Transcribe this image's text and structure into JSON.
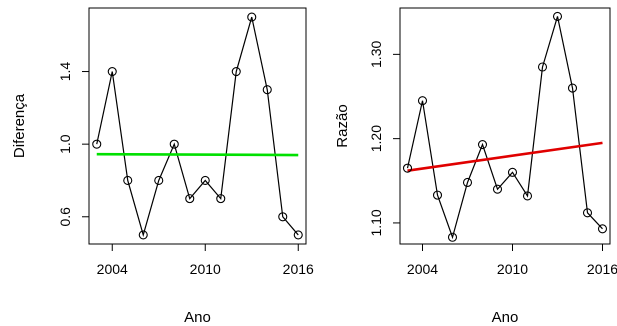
{
  "chart_data": [
    {
      "type": "line",
      "x": [
        2003,
        2004,
        2005,
        2006,
        2007,
        2008,
        2009,
        2010,
        2011,
        2012,
        2013,
        2014,
        2015,
        2016
      ],
      "series": [
        {
          "values": [
            1.0,
            1.4,
            0.8,
            0.5,
            0.8,
            1.0,
            0.7,
            0.8,
            0.7,
            1.4,
            1.7,
            1.3,
            0.6,
            0.5
          ]
        }
      ],
      "trend_line": {
        "x": [
          2003,
          2016
        ],
        "y": [
          0.945,
          0.94
        ],
        "color": "#00e000"
      },
      "xlabel": "Ano",
      "ylabel": "Diferença",
      "x_ticks": [
        "2004",
        "2010",
        "2016"
      ],
      "y_ticks": [
        "0.6",
        "1.0",
        "1.4"
      ],
      "xlim": [
        2002.5,
        2016.5
      ],
      "ylim": [
        0.45,
        1.75
      ],
      "grid": false,
      "marker": "open-circle"
    },
    {
      "type": "line",
      "x": [
        2003,
        2004,
        2005,
        2006,
        2007,
        2008,
        2009,
        2010,
        2011,
        2012,
        2013,
        2014,
        2015,
        2016
      ],
      "series": [
        {
          "values": [
            1.165,
            1.245,
            1.133,
            1.083,
            1.148,
            1.193,
            1.14,
            1.16,
            1.132,
            1.285,
            1.345,
            1.26,
            1.112,
            1.093
          ]
        }
      ],
      "trend_line": {
        "x": [
          2003,
          2016
        ],
        "y": [
          1.162,
          1.195
        ],
        "color": "#e00000"
      },
      "xlabel": "Ano",
      "ylabel": "Razão",
      "x_ticks": [
        "2004",
        "2010",
        "2016"
      ],
      "y_ticks": [
        "1.10",
        "1.20",
        "1.30"
      ],
      "xlim": [
        2002.5,
        2016.5
      ],
      "ylim": [
        1.075,
        1.355
      ],
      "grid": false,
      "marker": "open-circle"
    }
  ]
}
